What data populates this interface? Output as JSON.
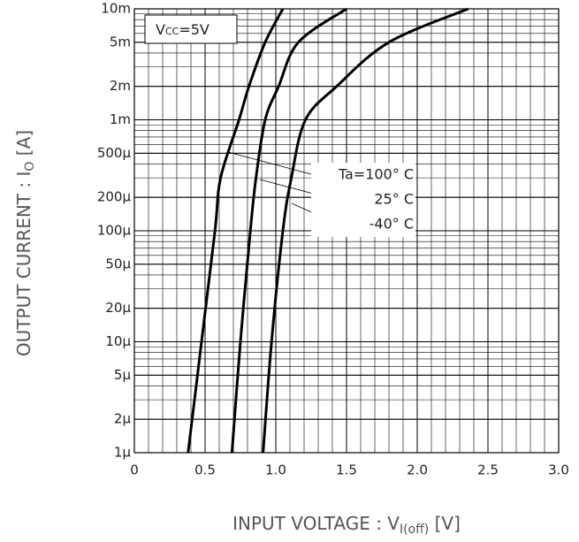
{
  "chart_data": {
    "type": "line",
    "x_label": {
      "text": "INPUT VOLTAGE : V",
      "sub": "I(off)",
      "suffix": " [V]"
    },
    "y_label": {
      "text": "OUTPUT CURRENT : I",
      "sub": "O",
      "suffix": " [A]"
    },
    "condition": {
      "text": "V",
      "sub": "CC",
      "suffix": "=5V"
    },
    "annotations": [
      "Ta=100° C",
      "25° C",
      "-40° C"
    ],
    "xlim": [
      0,
      3.0
    ],
    "xticks": [
      0,
      0.5,
      {
        "value": 1.0,
        "label": "1.0"
      },
      1.5,
      {
        "value": 2.0,
        "label": "2.0"
      },
      2.5,
      {
        "value": 3.0,
        "label": "3.0"
      }
    ],
    "ylim": [
      1e-06,
      0.01
    ],
    "log_y": true,
    "grid": true,
    "yticks": [
      {
        "value": 0.01,
        "label": "10m"
      },
      {
        "value": 0.005,
        "label": "5m"
      },
      {
        "value": 0.002,
        "label": "2m"
      },
      {
        "value": 0.001,
        "label": "1m"
      },
      {
        "value": 0.0005,
        "label": "500μ"
      },
      {
        "value": 0.0002,
        "label": "200μ"
      },
      {
        "value": 0.0001,
        "label": "100μ"
      },
      {
        "value": 5e-05,
        "label": "50μ"
      },
      {
        "value": 2e-05,
        "label": "20μ"
      },
      {
        "value": 1e-05,
        "label": "10μ"
      },
      {
        "value": 5e-06,
        "label": "5μ"
      },
      {
        "value": 2e-06,
        "label": "2μ"
      },
      {
        "value": 1e-06,
        "label": "1μ"
      }
    ],
    "series": [
      {
        "color": "#000000",
        "x": [
          0.38,
          0.475,
          0.57,
          0.61,
          0.74,
          0.81,
          0.925,
          1.05
        ],
        "values": [
          1e-06,
          1e-05,
          0.0001,
          0.0003,
          0.001,
          0.002,
          0.005,
          0.01
        ]
      },
      {
        "color": "#000000",
        "x": [
          0.69,
          0.75,
          0.82,
          0.86,
          0.925,
          1.02,
          1.16,
          1.5
        ],
        "values": [
          1e-06,
          1e-05,
          0.0001,
          0.0003,
          0.001,
          0.002,
          0.005,
          0.01
        ]
      },
      {
        "color": "#000000",
        "x": [
          0.91,
          0.97,
          1.05,
          1.11,
          1.21,
          1.43,
          1.8,
          2.36
        ],
        "values": [
          1e-06,
          1e-05,
          0.0001,
          0.0003,
          0.001,
          0.002,
          0.005,
          0.01
        ]
      }
    ]
  }
}
